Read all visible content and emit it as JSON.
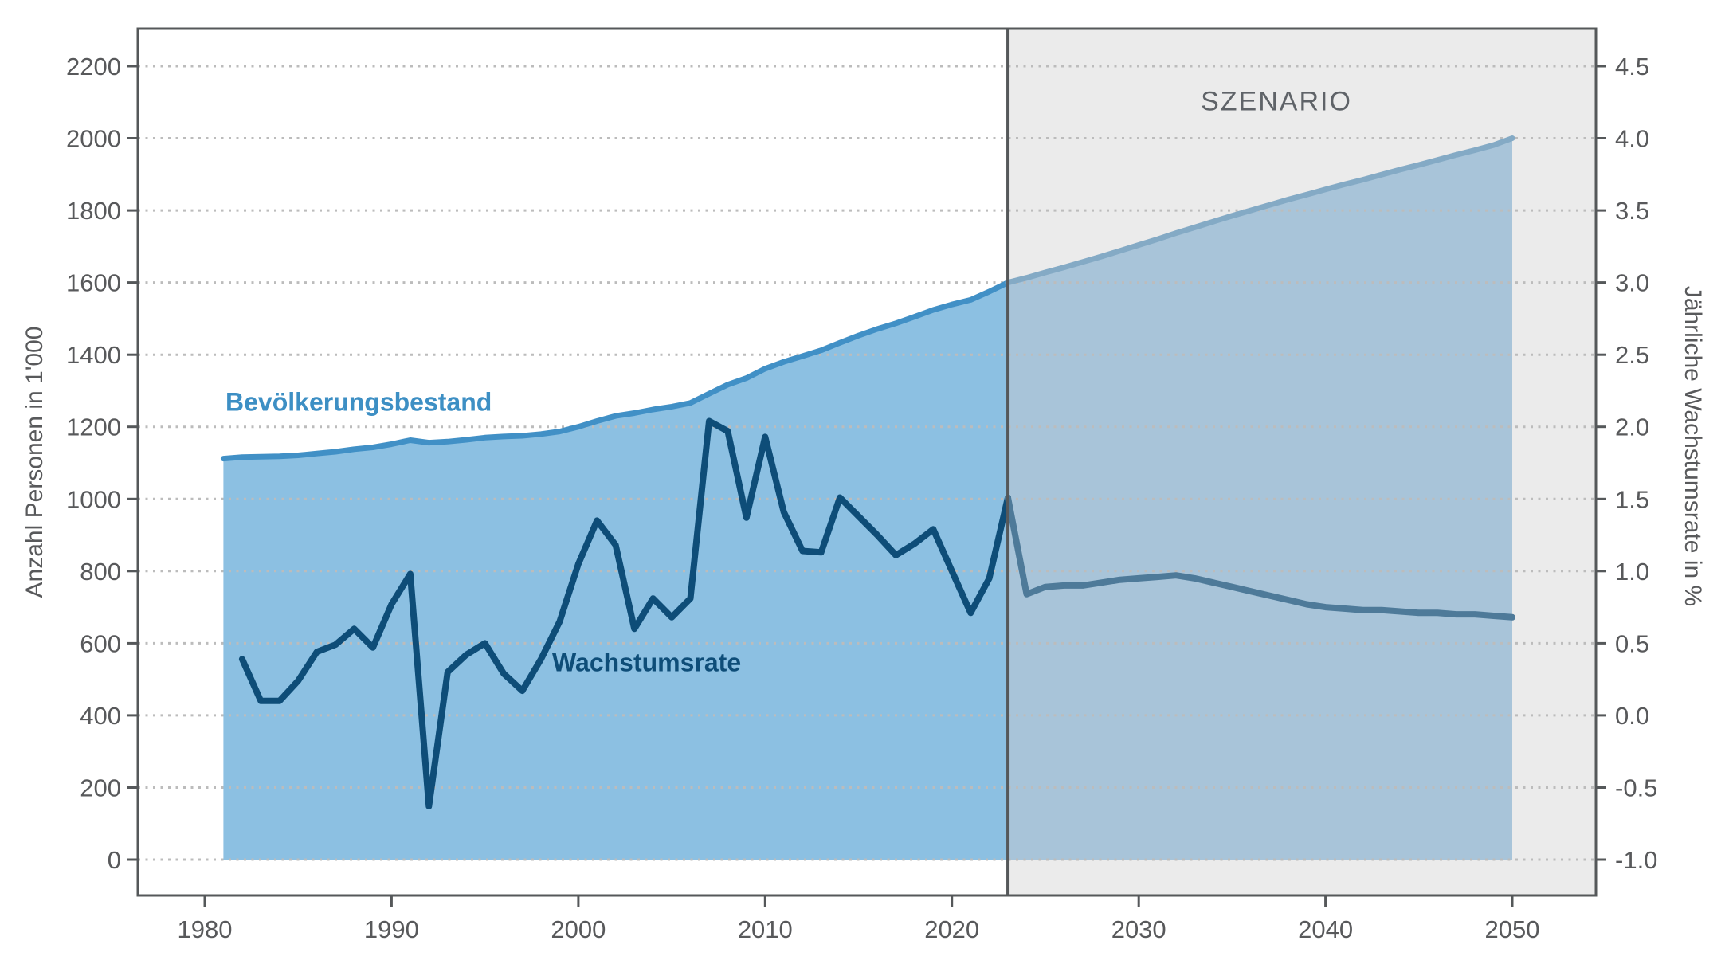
{
  "chart_data": {
    "type": "area",
    "title": "",
    "scenario": {
      "label": "SZENARIO",
      "start_year": 2023,
      "background_color": "#ebebeb",
      "divider_color": "#55585a"
    },
    "x_axis": {
      "ticks": [
        1980,
        1990,
        2000,
        2010,
        2020,
        2030,
        2040,
        2050
      ],
      "tick_labels": [
        "1980",
        "1990",
        "2000",
        "2010",
        "2020",
        "2030",
        "2040",
        "2050"
      ],
      "range_years": [
        1976.4,
        2054.5
      ]
    },
    "y_axis_left": {
      "label": "Anzahl Personen in 1'000",
      "ticks": [
        0,
        200,
        400,
        600,
        800,
        1000,
        1200,
        1400,
        1600,
        1800,
        2000,
        2200
      ],
      "tick_labels": [
        "0",
        "200",
        "400",
        "600",
        "800",
        "1000",
        "1200",
        "1400",
        "1600",
        "1800",
        "2000",
        "2200"
      ]
    },
    "y_axis_right": {
      "label": "Jährliche Wachstumsrate in %",
      "ticks": [
        -1.0,
        -0.5,
        0.0,
        0.5,
        1.0,
        1.5,
        2.0,
        2.5,
        3.0,
        3.5,
        4.0,
        4.5
      ],
      "tick_labels": [
        "-1.0",
        "-0.5",
        "0.0",
        "0.5",
        "1.0",
        "1.5",
        "2.0",
        "2.5",
        "3.0",
        "3.5",
        "4.0",
        "4.5"
      ]
    },
    "grid": {
      "on": true,
      "style": "dotted",
      "color": "#bcbcbc"
    },
    "series": [
      {
        "name": "Bevölkerungsbestand",
        "type": "area",
        "axis": "left",
        "color": "#4190c6",
        "fill": "#8cc0e2",
        "scenario_color": "#84aac5",
        "scenario_fill": "#a8c4d9",
        "x": [
          1981,
          1982,
          1983,
          1984,
          1985,
          1986,
          1987,
          1988,
          1989,
          1990,
          1991,
          1992,
          1993,
          1994,
          1995,
          1996,
          1997,
          1998,
          1999,
          2000,
          2001,
          2002,
          2003,
          2004,
          2005,
          2006,
          2007,
          2008,
          2009,
          2010,
          2011,
          2012,
          2013,
          2014,
          2015,
          2016,
          2017,
          2018,
          2019,
          2020,
          2021,
          2022,
          2023,
          2024,
          2025,
          2026,
          2027,
          2028,
          2029,
          2030,
          2031,
          2032,
          2033,
          2034,
          2035,
          2036,
          2037,
          2038,
          2039,
          2040,
          2041,
          2042,
          2043,
          2044,
          2045,
          2046,
          2047,
          2048,
          2049,
          2050
        ],
        "values": [
          1112,
          1116,
          1117,
          1118,
          1121,
          1126,
          1131,
          1138,
          1143,
          1152,
          1163,
          1156,
          1159,
          1164,
          1170,
          1173,
          1175,
          1180,
          1187,
          1200,
          1216,
          1230,
          1238,
          1248,
          1256,
          1266,
          1292,
          1317,
          1335,
          1361,
          1380,
          1396,
          1412,
          1433,
          1453,
          1471,
          1487,
          1505,
          1524,
          1539,
          1552,
          1575,
          1600,
          1613,
          1628,
          1642,
          1657,
          1672,
          1688,
          1704,
          1720,
          1737,
          1753,
          1769,
          1785,
          1800,
          1815,
          1830,
          1844,
          1858,
          1872,
          1885,
          1899,
          1913,
          1926,
          1940,
          1954,
          1967,
          1981,
          2000
        ]
      },
      {
        "name": "Wachstumsrate",
        "type": "line",
        "axis": "right",
        "color": "#0e4d78",
        "scenario_color": "#4e7a99",
        "x": [
          1982,
          1983,
          1984,
          1985,
          1986,
          1987,
          1988,
          1989,
          1990,
          1991,
          1992,
          1993,
          1994,
          1995,
          1996,
          1997,
          1998,
          1999,
          2000,
          2001,
          2002,
          2003,
          2004,
          2005,
          2006,
          2007,
          2008,
          2009,
          2010,
          2011,
          2012,
          2013,
          2014,
          2015,
          2016,
          2017,
          2018,
          2019,
          2020,
          2021,
          2022,
          2023,
          2024,
          2025,
          2026,
          2027,
          2028,
          2029,
          2030,
          2031,
          2032,
          2033,
          2034,
          2035,
          2036,
          2037,
          2038,
          2039,
          2040,
          2041,
          2042,
          2043,
          2044,
          2045,
          2046,
          2047,
          2048,
          2049,
          2050
        ],
        "values": [
          0.39,
          0.1,
          0.1,
          0.24,
          0.44,
          0.49,
          0.6,
          0.47,
          0.77,
          0.98,
          -0.63,
          0.3,
          0.42,
          0.5,
          0.29,
          0.17,
          0.39,
          0.65,
          1.05,
          1.35,
          1.18,
          0.6,
          0.81,
          0.68,
          0.81,
          2.04,
          1.97,
          1.37,
          1.93,
          1.41,
          1.14,
          1.13,
          1.51,
          1.38,
          1.25,
          1.11,
          1.19,
          1.29,
          1.0,
          0.71,
          0.95,
          1.51,
          0.84,
          0.89,
          0.9,
          0.9,
          0.92,
          0.94,
          0.95,
          0.96,
          0.97,
          0.95,
          0.92,
          0.89,
          0.86,
          0.83,
          0.8,
          0.77,
          0.75,
          0.74,
          0.73,
          0.73,
          0.72,
          0.71,
          0.71,
          0.7,
          0.7,
          0.69,
          0.68
        ]
      }
    ],
    "frame_color": "#55585a",
    "tick_text_color": "#58595b"
  }
}
